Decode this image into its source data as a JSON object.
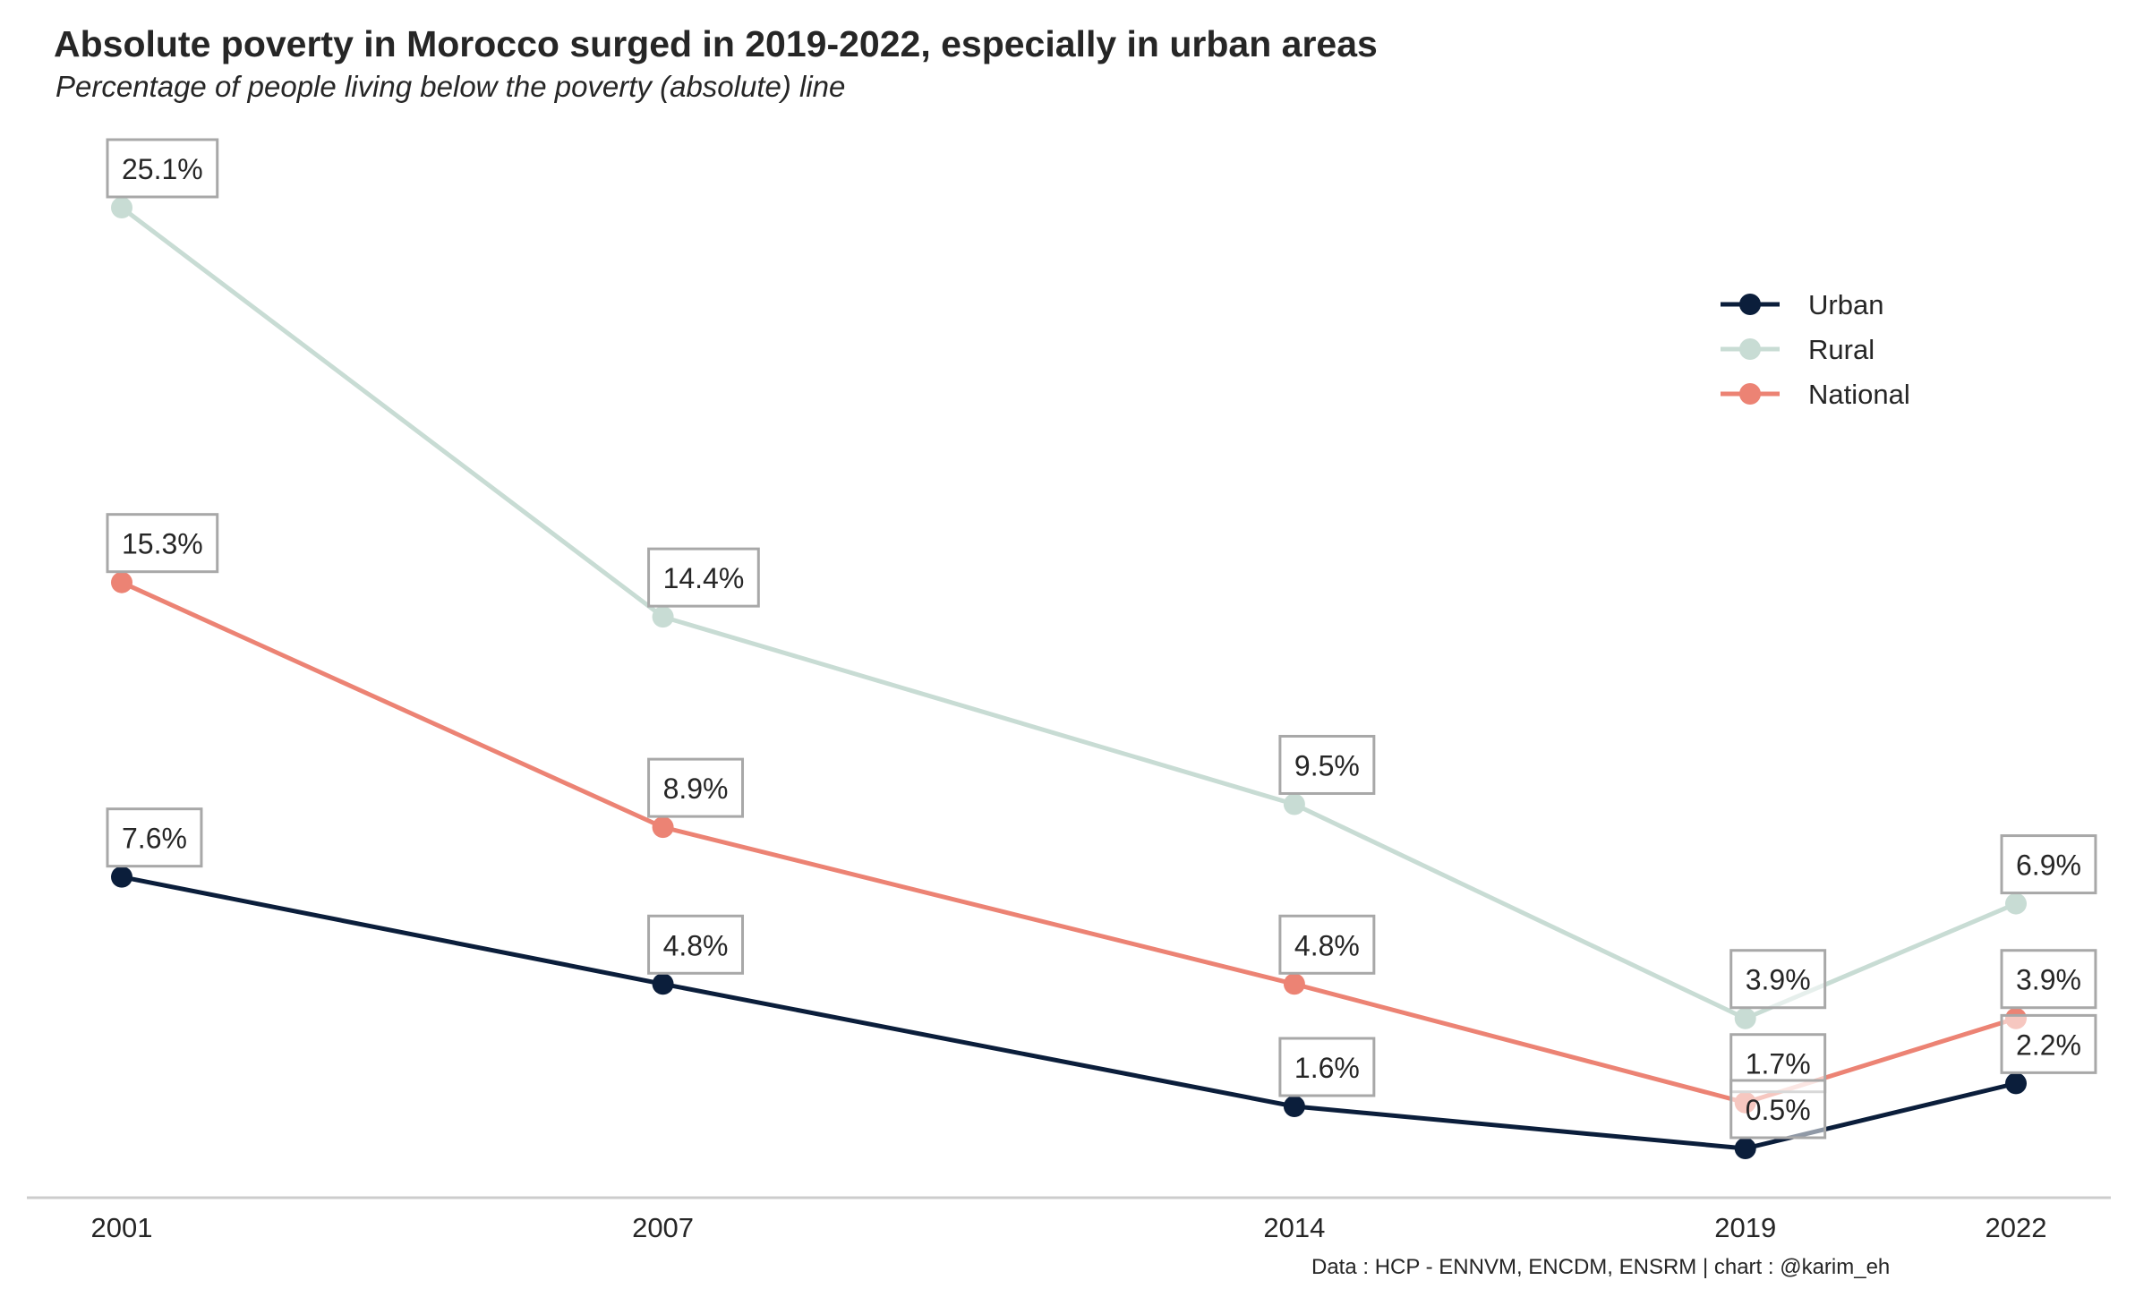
{
  "chart_data": {
    "type": "line",
    "title": "Absolute poverty in Morocco surged in 2019-2022, especially in urban areas",
    "subtitle": "Percentage of people living below the poverty (absolute) line",
    "x": [
      2001,
      2007,
      2014,
      2019,
      2022
    ],
    "x_tick_labels": [
      "2001",
      "2007",
      "2014",
      "2019",
      "2022"
    ],
    "xlabel": "",
    "ylabel": "",
    "ylim": [
      -1.0,
      26.5
    ],
    "grid": false,
    "legend_position": "top-right",
    "series": [
      {
        "name": "Urban",
        "color": "#0b1e3b",
        "values": [
          7.6,
          4.8,
          1.6,
          0.5,
          2.2
        ],
        "labels": [
          "7.6%",
          "4.8%",
          "1.6%",
          "0.5%",
          "2.2%"
        ]
      },
      {
        "name": "Rural",
        "color": "#c8dcd4",
        "values": [
          25.1,
          14.4,
          9.5,
          3.9,
          6.9
        ],
        "labels": [
          "25.1%",
          "14.4%",
          "9.5%",
          "3.9%",
          "6.9%"
        ]
      },
      {
        "name": "National",
        "color": "#ec8374",
        "values": [
          15.3,
          8.9,
          4.8,
          1.7,
          3.9
        ],
        "labels": [
          "15.3%",
          "8.9%",
          "4.8%",
          "1.7%",
          "3.9%"
        ]
      }
    ],
    "source": "Data : HCP - ENNVM, ENCDM, ENSRM | chart : @karim_eh"
  }
}
